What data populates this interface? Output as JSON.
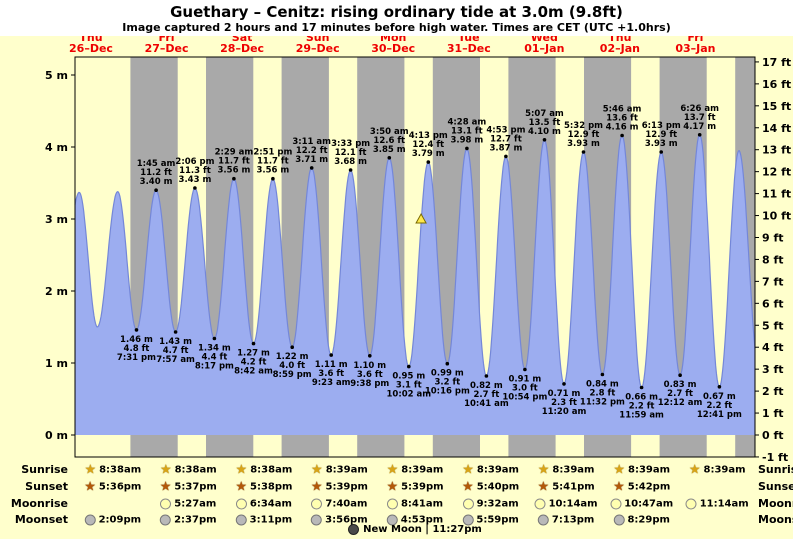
{
  "chart_data": {
    "type": "area",
    "title": "Guethary – Cenitz: rising ordinary tide at 3.0m (9.8ft)",
    "subtitle": "Image captured 2 hours and 17 minutes before high water. Times are CET (UTC +1.0hrs)",
    "x_axis": {
      "hours_total": 216,
      "days": [
        {
          "weekday": "Thu",
          "date": "26–Dec"
        },
        {
          "weekday": "Fri",
          "date": "27–Dec"
        },
        {
          "weekday": "Sat",
          "date": "28–Dec"
        },
        {
          "weekday": "Sun",
          "date": "29–Dec"
        },
        {
          "weekday": "Mon",
          "date": "30–Dec"
        },
        {
          "weekday": "Tue",
          "date": "31–Dec"
        },
        {
          "weekday": "Wed",
          "date": "01–Jan"
        },
        {
          "weekday": "Thu",
          "date": "02–Jan"
        },
        {
          "weekday": "Fri",
          "date": "03–Jan"
        }
      ]
    },
    "y_axis_left": {
      "unit": "m",
      "ticks": [
        0,
        1,
        2,
        3,
        4,
        5
      ]
    },
    "y_axis_right": {
      "unit": "ft",
      "tick_min": -1,
      "tick_max": 17
    },
    "tide_events": [
      {
        "t": 19.52,
        "type": "low",
        "time": "7:31 pm",
        "m": 1.46,
        "ft": 4.8
      },
      {
        "t": 25.75,
        "type": "high",
        "time": "1:45 am",
        "m": 3.4,
        "ft": 11.2
      },
      {
        "t": 31.95,
        "type": "low",
        "time": "7:57 am",
        "m": 1.43,
        "ft": 4.7
      },
      {
        "t": 38.1,
        "type": "high",
        "time": "2:06 pm",
        "m": 3.43,
        "ft": 11.3
      },
      {
        "t": 44.28,
        "type": "low",
        "time": "8:17 pm",
        "m": 1.34,
        "ft": 4.4
      },
      {
        "t": 50.48,
        "type": "high",
        "time": "2:29 am",
        "m": 3.56,
        "ft": 11.7
      },
      {
        "t": 56.7,
        "type": "low",
        "time": "8:42 am",
        "m": 1.27,
        "ft": 4.2
      },
      {
        "t": 62.85,
        "type": "high",
        "time": "2:51 pm",
        "m": 3.56,
        "ft": 11.7
      },
      {
        "t": 68.98,
        "type": "low",
        "time": "8:59 pm",
        "m": 1.22,
        "ft": 4.0
      },
      {
        "t": 75.18,
        "type": "high",
        "time": "3:11 am",
        "m": 3.71,
        "ft": 12.2
      },
      {
        "t": 81.38,
        "type": "low",
        "time": "9:23 am",
        "m": 1.11,
        "ft": 3.6
      },
      {
        "t": 87.55,
        "type": "high",
        "time": "3:33 pm",
        "m": 3.68,
        "ft": 12.1
      },
      {
        "t": 93.63,
        "type": "low",
        "time": "9:38 pm",
        "m": 1.1,
        "ft": 3.6
      },
      {
        "t": 99.83,
        "type": "high",
        "time": "3:50 am",
        "m": 3.85,
        "ft": 12.6
      },
      {
        "t": 106.03,
        "type": "low",
        "time": "10:02 am",
        "m": 0.95,
        "ft": 3.1
      },
      {
        "t": 112.22,
        "type": "high",
        "time": "4:13 pm",
        "m": 3.79,
        "ft": 12.4
      },
      {
        "t": 118.27,
        "type": "low",
        "time": "10:16 pm",
        "m": 0.99,
        "ft": 3.2
      },
      {
        "t": 124.47,
        "type": "high",
        "time": "4:28 am",
        "m": 3.98,
        "ft": 13.1
      },
      {
        "t": 130.68,
        "type": "low",
        "time": "10:41 am",
        "m": 0.82,
        "ft": 2.7
      },
      {
        "t": 136.88,
        "type": "high",
        "time": "4:53 pm",
        "m": 3.87,
        "ft": 12.7
      },
      {
        "t": 142.9,
        "type": "low",
        "time": "10:54 pm",
        "m": 0.91,
        "ft": 3.0
      },
      {
        "t": 149.12,
        "type": "high",
        "time": "5:07 am",
        "m": 4.1,
        "ft": 13.5
      },
      {
        "t": 155.33,
        "type": "low",
        "time": "11:20 am",
        "m": 0.71,
        "ft": 2.3
      },
      {
        "t": 161.53,
        "type": "high",
        "time": "5:32 pm",
        "m": 3.93,
        "ft": 12.9
      },
      {
        "t": 167.53,
        "type": "low",
        "time": "11:32 pm",
        "m": 0.84,
        "ft": 2.8
      },
      {
        "t": 173.77,
        "type": "high",
        "time": "5:46 am",
        "m": 4.16,
        "ft": 13.6
      },
      {
        "t": 179.98,
        "type": "low",
        "time": "11:59 am",
        "m": 0.66,
        "ft": 2.2
      },
      {
        "t": 186.22,
        "type": "high",
        "time": "6:13 pm",
        "m": 3.93,
        "ft": 12.9
      },
      {
        "t": 192.2,
        "type": "low",
        "time": "12:12 am",
        "m": 0.83,
        "ft": 2.7
      },
      {
        "t": 198.43,
        "type": "high",
        "time": "6:26 am",
        "m": 4.17,
        "ft": 13.7
      },
      {
        "t": 204.68,
        "type": "low",
        "time": "12:41 pm",
        "m": 0.67,
        "ft": 2.2
      }
    ],
    "edge_curve_points": [
      {
        "t": -5.4,
        "m": 1.55
      },
      {
        "t": 1.35,
        "m": 3.37
      },
      {
        "t": 7.1,
        "m": 1.5
      },
      {
        "t": 13.55,
        "m": 3.38
      },
      {
        "t": 210.9,
        "m": 3.95
      },
      {
        "t": 217.3,
        "m": 0.9
      }
    ],
    "capture_marker": {
      "t": 109.93,
      "m": 3.0
    },
    "night_bands": [
      [
        17.6,
        32.63
      ],
      [
        41.62,
        56.63
      ],
      [
        65.63,
        80.65
      ],
      [
        89.65,
        104.65
      ],
      [
        113.65,
        128.65
      ],
      [
        137.67,
        152.65
      ],
      [
        161.68,
        176.65
      ],
      [
        185.7,
        200.65
      ],
      [
        209.7,
        216.0
      ]
    ],
    "colors": {
      "sea_fill": "#9cadf0",
      "sea_edge": "#7487d8",
      "night": "#a9a9a9",
      "day_bg": "#ffffcc",
      "date_red": "#ee0000"
    }
  },
  "astro": {
    "rows": [
      {
        "kind": "sunrise",
        "label": "Sunrise",
        "icon": "sunrise-star-icon",
        "start_col": 0,
        "times": [
          "8:38am",
          "8:38am",
          "8:38am",
          "8:39am",
          "8:39am",
          "8:39am",
          "8:39am",
          "8:39am",
          "8:39am"
        ]
      },
      {
        "kind": "sunset",
        "label": "Sunset",
        "icon": "sunset-star-icon",
        "start_col": 0,
        "times": [
          "5:36pm",
          "5:37pm",
          "5:38pm",
          "5:39pm",
          "5:39pm",
          "5:40pm",
          "5:41pm",
          "5:42pm"
        ]
      },
      {
        "kind": "moonrise",
        "label": "Moonrise",
        "icon": "moonrise-circle-icon",
        "start_col": 1,
        "times": [
          "5:27am",
          "6:34am",
          "7:40am",
          "8:41am",
          "9:32am",
          "10:14am",
          "10:47am",
          "11:14am"
        ]
      },
      {
        "kind": "moonset",
        "label": "Moonset",
        "icon": "moonset-circle-icon",
        "start_col": 0,
        "times": [
          "2:09pm",
          "2:37pm",
          "3:11pm",
          "3:56pm",
          "4:53pm",
          "5:59pm",
          "7:13pm",
          "8:29pm"
        ]
      }
    ],
    "footer": {
      "icon": "new-moon-icon",
      "text": "New Moon | 11:27pm"
    }
  }
}
